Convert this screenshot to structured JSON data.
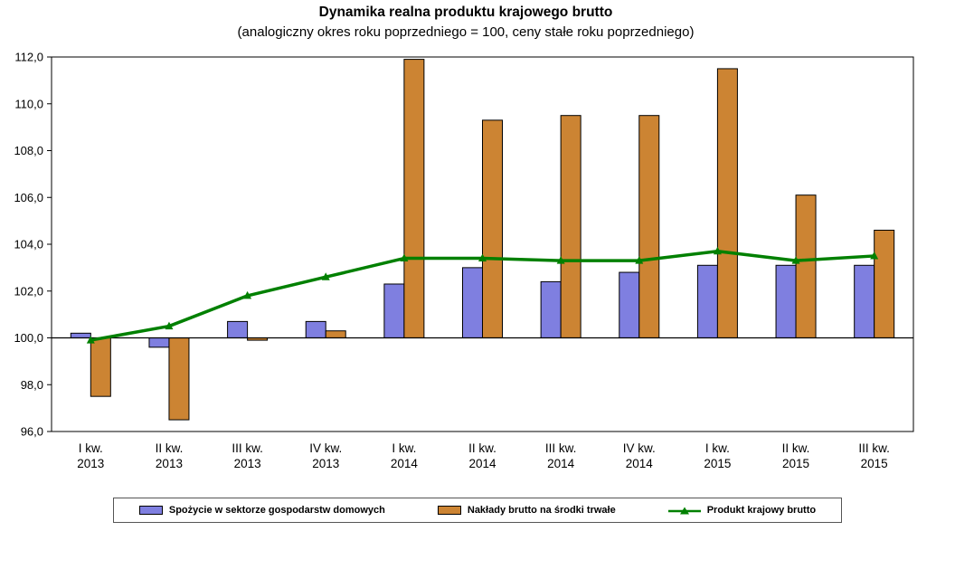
{
  "title": "Dynamika realna produktu krajowego brutto",
  "subtitle": "(analogiczny okres roku poprzedniego = 100, ceny stałe roku poprzedniego)",
  "chart_data": {
    "type": "bar",
    "subtype": "grouped bars with overlaid line, baseline at 100",
    "categories": [
      [
        "I kw.",
        "2013"
      ],
      [
        "II kw.",
        "2013"
      ],
      [
        "III kw.",
        "2013"
      ],
      [
        "IV kw.",
        "2013"
      ],
      [
        "I kw.",
        "2014"
      ],
      [
        "II kw.",
        "2014"
      ],
      [
        "III kw.",
        "2014"
      ],
      [
        "IV kw.",
        "2014"
      ],
      [
        "I kw.",
        "2015"
      ],
      [
        "II kw.",
        "2015"
      ],
      [
        "III kw.",
        "2015"
      ]
    ],
    "ylim": [
      96.0,
      112.0
    ],
    "ytick_step": 2.0,
    "ytick_labels": [
      "96,0",
      "98,0",
      "100,0",
      "102,0",
      "104,0",
      "106,0",
      "108,0",
      "110,0",
      "112,0"
    ],
    "baseline": 100.0,
    "grid": false,
    "legend_position": "bottom",
    "series": [
      {
        "name": "Spożycie w sektorze gospodarstw domowych",
        "type": "bar",
        "color": "#7F7FE0",
        "values": [
          100.2,
          99.6,
          100.7,
          100.7,
          102.3,
          103.0,
          102.4,
          102.8,
          103.1,
          103.1,
          103.1
        ]
      },
      {
        "name": "Nakłady brutto na środki trwałe",
        "type": "bar",
        "color": "#CC8433",
        "values": [
          97.5,
          96.5,
          99.9,
          100.3,
          111.9,
          109.3,
          109.5,
          109.5,
          111.5,
          106.1,
          104.6
        ]
      },
      {
        "name": "Produkt krajowy brutto",
        "type": "line",
        "color": "#008000",
        "values": [
          99.9,
          100.5,
          101.8,
          102.6,
          103.4,
          103.4,
          103.3,
          103.3,
          103.7,
          103.3,
          103.5
        ]
      }
    ]
  }
}
